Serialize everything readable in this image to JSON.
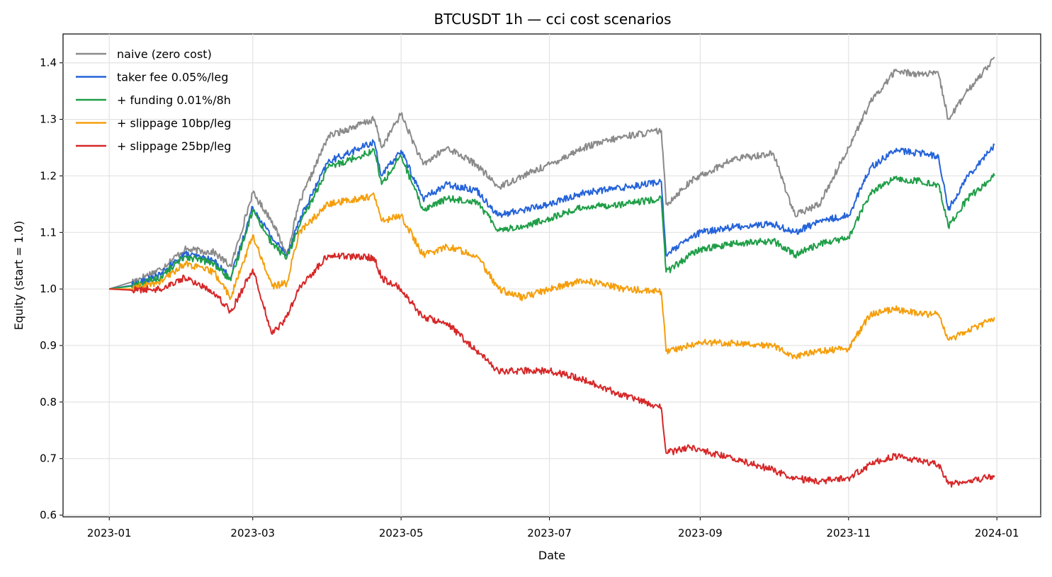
{
  "chart_data": {
    "type": "line",
    "title": "BTCUSDT 1h — cci cost scenarios",
    "xlabel": "Date",
    "ylabel": "Equity (start = 1.0)",
    "xlim": [
      "2022-12-13",
      "2024-01-19"
    ],
    "ylim": [
      0.597,
      1.451
    ],
    "grid": true,
    "legend_position": "upper left",
    "x_ticks": [
      "2023-01-01",
      "2023-03-01",
      "2023-05-01",
      "2023-07-01",
      "2023-09-01",
      "2023-11-01",
      "2024-01-01"
    ],
    "x_tick_labels": [
      "2023-01",
      "2023-03",
      "2023-05",
      "2023-07",
      "2023-09",
      "2023-11",
      "2024-01"
    ],
    "y_ticks": [
      0.6,
      0.7,
      0.8,
      0.9,
      1.0,
      1.1,
      1.2,
      1.3,
      1.4
    ],
    "y_tick_labels": [
      "0.6",
      "0.7",
      "0.8",
      "0.9",
      "1.0",
      "1.1",
      "1.2",
      "1.3",
      "1.4"
    ],
    "x": [
      "2023-01-01",
      "2023-01-10",
      "2023-01-22",
      "2023-02-01",
      "2023-02-13",
      "2023-02-20",
      "2023-03-01",
      "2023-03-09",
      "2023-03-15",
      "2023-03-20",
      "2023-04-01",
      "2023-04-20",
      "2023-04-23",
      "2023-05-01",
      "2023-05-10",
      "2023-05-20",
      "2023-06-01",
      "2023-06-10",
      "2023-06-20",
      "2023-07-01",
      "2023-07-15",
      "2023-08-01",
      "2023-08-16",
      "2023-08-18",
      "2023-08-28",
      "2023-09-01",
      "2023-09-15",
      "2023-10-01",
      "2023-10-10",
      "2023-10-20",
      "2023-11-01",
      "2023-11-10",
      "2023-11-20",
      "2023-12-01",
      "2023-12-08",
      "2023-12-12",
      "2023-12-20",
      "2023-12-31"
    ],
    "series": [
      {
        "name": "naive (zero cost)",
        "color": "#8a8a8a",
        "values": [
          1.0,
          1.012,
          1.035,
          1.07,
          1.065,
          1.04,
          1.17,
          1.12,
          1.06,
          1.15,
          1.27,
          1.3,
          1.25,
          1.31,
          1.22,
          1.25,
          1.22,
          1.18,
          1.2,
          1.22,
          1.25,
          1.27,
          1.28,
          1.15,
          1.19,
          1.2,
          1.23,
          1.24,
          1.13,
          1.15,
          1.25,
          1.33,
          1.385,
          1.38,
          1.38,
          1.3,
          1.35,
          1.41
        ]
      },
      {
        "name": "taker fee 0.05%/leg",
        "color": "#2563d9",
        "values": [
          1.0,
          1.006,
          1.025,
          1.062,
          1.05,
          1.02,
          1.145,
          1.09,
          1.06,
          1.12,
          1.225,
          1.26,
          1.2,
          1.245,
          1.16,
          1.185,
          1.175,
          1.13,
          1.14,
          1.15,
          1.17,
          1.18,
          1.19,
          1.06,
          1.09,
          1.1,
          1.11,
          1.115,
          1.1,
          1.12,
          1.13,
          1.215,
          1.245,
          1.24,
          1.235,
          1.14,
          1.2,
          1.255
        ]
      },
      {
        "name": "+ funding 0.01%/8h",
        "color": "#1f9e47",
        "values": [
          1.0,
          1.005,
          1.02,
          1.058,
          1.045,
          1.015,
          1.14,
          1.08,
          1.055,
          1.11,
          1.215,
          1.245,
          1.185,
          1.235,
          1.14,
          1.16,
          1.155,
          1.105,
          1.11,
          1.125,
          1.145,
          1.15,
          1.16,
          1.03,
          1.06,
          1.07,
          1.08,
          1.085,
          1.06,
          1.08,
          1.09,
          1.17,
          1.195,
          1.19,
          1.185,
          1.11,
          1.16,
          1.2
        ]
      },
      {
        "name": "+ slippage 10bp/leg",
        "color": "#f59e0b",
        "values": [
          1.0,
          1.0,
          1.012,
          1.045,
          1.03,
          0.985,
          1.095,
          1.005,
          1.01,
          1.1,
          1.15,
          1.165,
          1.12,
          1.13,
          1.06,
          1.075,
          1.06,
          1.0,
          0.985,
          1.0,
          1.015,
          1.0,
          0.995,
          0.89,
          0.9,
          0.905,
          0.905,
          0.9,
          0.88,
          0.89,
          0.895,
          0.955,
          0.965,
          0.955,
          0.955,
          0.91,
          0.925,
          0.95
        ]
      },
      {
        "name": "+ slippage 25bp/leg",
        "color": "#d62728",
        "values": [
          1.0,
          0.998,
          1.0,
          1.02,
          0.995,
          0.96,
          1.035,
          0.92,
          0.95,
          1.0,
          1.06,
          1.055,
          1.02,
          1.0,
          0.95,
          0.94,
          0.89,
          0.855,
          0.855,
          0.855,
          0.84,
          0.81,
          0.79,
          0.71,
          0.72,
          0.715,
          0.7,
          0.68,
          0.665,
          0.66,
          0.665,
          0.69,
          0.705,
          0.695,
          0.69,
          0.655,
          0.66,
          0.67
        ]
      }
    ]
  }
}
